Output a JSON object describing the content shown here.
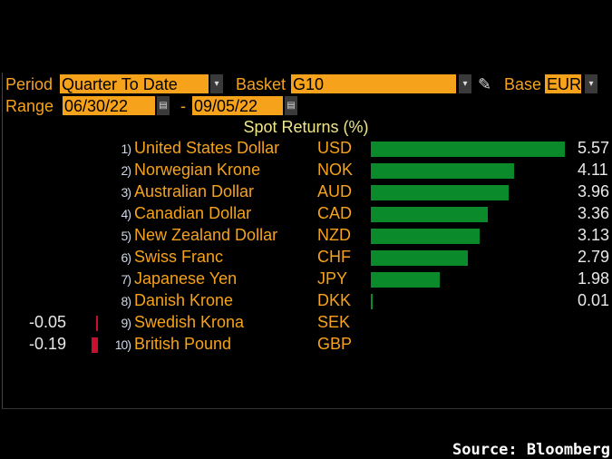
{
  "controls": {
    "period_label": "Period",
    "period_value": "Quarter To Date",
    "basket_label": "Basket",
    "basket_value": "G10",
    "base_label": "Base",
    "base_value": "EUR",
    "range_label": "Range",
    "range_start": "06/30/22",
    "range_sep": "-",
    "range_end": "09/05/22",
    "dropdown_glyph": "▾",
    "calendar_glyph": "▤",
    "pencil_glyph": "✎"
  },
  "colors": {
    "positive": "#0b8a2b",
    "negative": "#c8102e",
    "label": "#f7a21b"
  },
  "chart_data": {
    "type": "bar",
    "orientation": "horizontal",
    "title": "Spot Returns (%)",
    "categories": [
      {
        "rank": "1)",
        "name": "United States Dollar",
        "code": "USD"
      },
      {
        "rank": "2)",
        "name": "Norwegian Krone",
        "code": "NOK"
      },
      {
        "rank": "3)",
        "name": "Australian Dollar",
        "code": "AUD"
      },
      {
        "rank": "4)",
        "name": "Canadian Dollar",
        "code": "CAD"
      },
      {
        "rank": "5)",
        "name": "New Zealand Dollar",
        "code": "NZD"
      },
      {
        "rank": "6)",
        "name": "Swiss Franc",
        "code": "CHF"
      },
      {
        "rank": "7)",
        "name": "Japanese Yen",
        "code": "JPY"
      },
      {
        "rank": "8)",
        "name": "Danish Krone",
        "code": "DKK"
      },
      {
        "rank": "9)",
        "name": "Swedish Krona",
        "code": "SEK"
      },
      {
        "rank": "10)",
        "name": "British Pound",
        "code": "GBP"
      }
    ],
    "values": [
      5.57,
      4.11,
      3.96,
      3.36,
      3.13,
      2.79,
      1.98,
      0.01,
      -0.05,
      -0.19
    ],
    "labels": [
      "5.57",
      "4.11",
      "3.96",
      "3.36",
      "3.13",
      "2.79",
      "1.98",
      "0.01",
      "-0.05",
      "-0.19"
    ]
  },
  "footer": {
    "source": "Source: Bloomberg"
  }
}
